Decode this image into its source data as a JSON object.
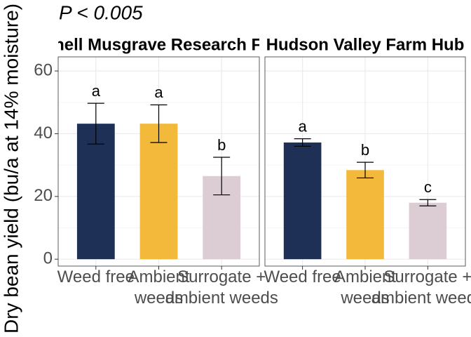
{
  "title": "P < 0.005",
  "y_label": "Dry bean yield (bu/a at 14% moisture)",
  "chart_data": [
    {
      "type": "bar",
      "title": "Cornell Musgrave Research Farm",
      "categories": [
        "Weed free",
        "Ambient\nweeds",
        "Surrogate +\nambient weeds"
      ],
      "values": [
        43.2,
        43.2,
        26.5
      ],
      "errors": [
        6.5,
        6,
        6
      ],
      "annotations": [
        "a",
        "a",
        "b"
      ],
      "colors": [
        "#1f3057",
        "#f2b93b",
        "#dbcdd3"
      ],
      "ylim": [
        -2.2,
        64.5
      ],
      "yticks": [
        0,
        20,
        40,
        60
      ],
      "grid": true
    },
    {
      "type": "bar",
      "title": "Hudson Valley Farm Hub",
      "categories": [
        "Weed free",
        "Ambient\nweeds",
        "Surrogate +\nambient weeds"
      ],
      "values": [
        37.2,
        28.4,
        18
      ],
      "errors": [
        1.2,
        2.5,
        1
      ],
      "annotations": [
        "a",
        "b",
        "c"
      ],
      "colors": [
        "#1f3057",
        "#f2b93b",
        "#dbcdd3"
      ],
      "ylim": [
        -2.2,
        64.5
      ],
      "yticks": [
        0,
        20,
        40,
        60
      ],
      "grid": true
    }
  ]
}
